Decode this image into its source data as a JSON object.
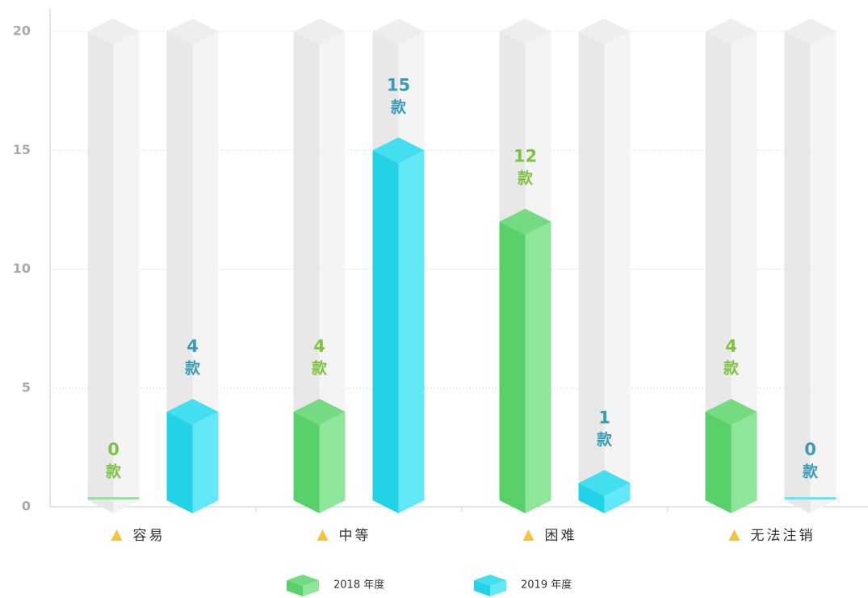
{
  "chart_data": {
    "type": "bar3d",
    "categories": [
      "容易",
      "中等",
      "困难",
      "无法注销"
    ],
    "series": [
      {
        "name": "2018 年度",
        "color": "#5ad06a",
        "label_color": "#7dc242",
        "values": [
          0,
          4,
          12,
          4
        ]
      },
      {
        "name": "2019 年度",
        "color": "#22d3e8",
        "label_color": "#3a9bb8",
        "values": [
          4,
          15,
          1,
          0
        ]
      }
    ],
    "unit": "款",
    "ylim": [
      0,
      20
    ],
    "yticks": [
      0,
      5,
      10,
      15,
      20
    ],
    "grid": true
  }
}
